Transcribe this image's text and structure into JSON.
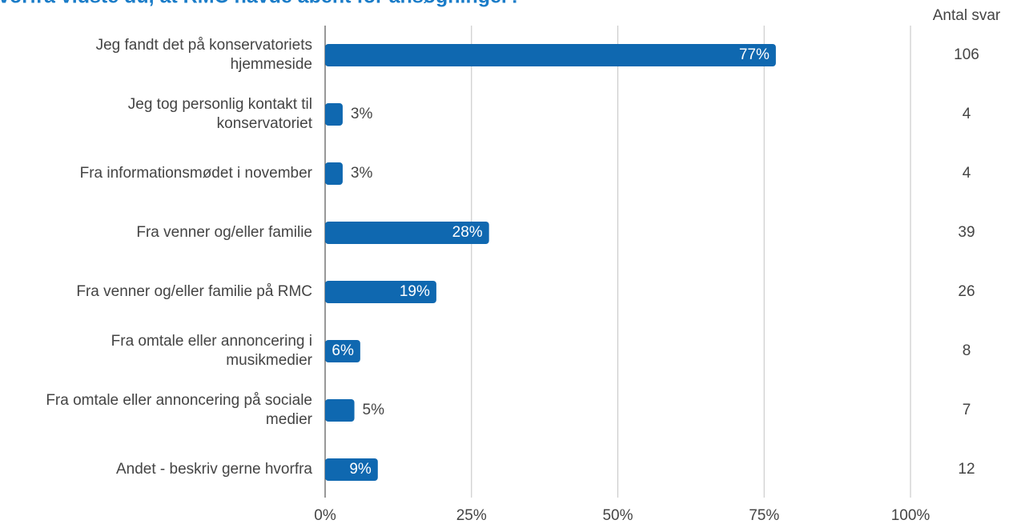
{
  "chart_data": {
    "type": "bar",
    "orientation": "horizontal",
    "title": "Hvorfra vidste du, at RMC havde åbent for ansøgninger?",
    "categories": [
      [
        "Jeg fandt det på konservatoriets",
        "hjemmeside"
      ],
      [
        "Jeg tog personlig kontakt til",
        "konservatoriet"
      ],
      [
        "Fra informationsmødet i november"
      ],
      [
        "Fra venner og/eller familie"
      ],
      [
        "Fra venner og/eller familie på RMC"
      ],
      [
        "Fra omtale eller annoncering i",
        "musikmedier"
      ],
      [
        "Fra omtale eller annoncering på sociale",
        "medier"
      ],
      [
        "Andet - beskriv gerne hvorfra"
      ]
    ],
    "values": [
      77,
      3,
      3,
      28,
      19,
      6,
      5,
      9
    ],
    "value_labels": [
      "77%",
      "3%",
      "3%",
      "28%",
      "19%",
      "6%",
      "5%",
      "9%"
    ],
    "color": "#0f68b0",
    "count_header": "Antal svar",
    "counts": [
      106,
      4,
      4,
      39,
      26,
      8,
      7,
      12
    ],
    "xlim": [
      0,
      100
    ],
    "xticks": [
      {
        "value": 0,
        "label": "0%"
      },
      {
        "value": 25,
        "label": "25%"
      },
      {
        "value": 50,
        "label": "50%"
      },
      {
        "value": 75,
        "label": "75%"
      },
      {
        "value": 100,
        "label": "100%"
      }
    ],
    "grid": true
  }
}
